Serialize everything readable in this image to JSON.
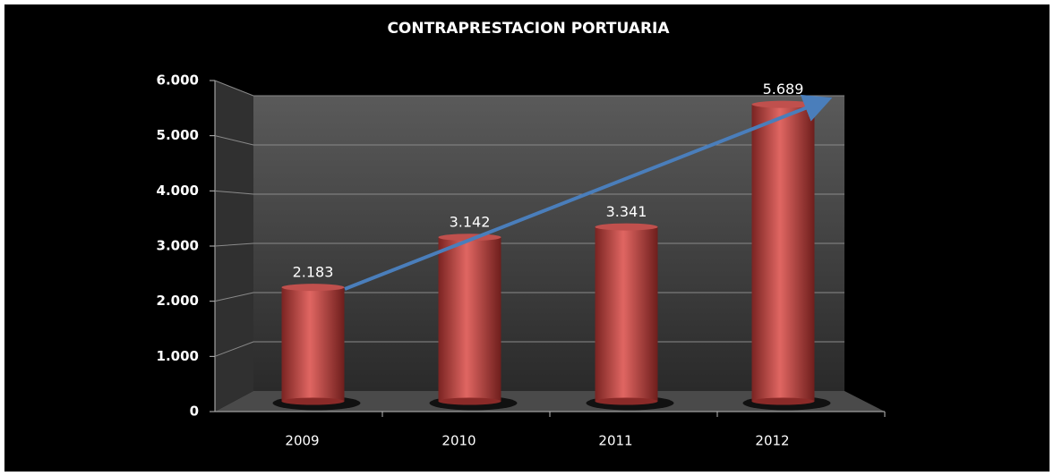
{
  "chart_data": {
    "type": "bar",
    "title": "CONTRAPRESTACION PORTUARIA",
    "categories": [
      "2009",
      "2010",
      "2011",
      "2012"
    ],
    "values": [
      2183,
      3142,
      3341,
      5689
    ],
    "value_labels": [
      "2.183",
      "3.142",
      "3.341",
      "5.689"
    ],
    "color": "#c0504d",
    "ylim": [
      0,
      6000
    ],
    "yticks": [
      0,
      {
        "value": 1000,
        "label": "1.000"
      },
      {
        "value": 2000,
        "label": "2.000"
      },
      {
        "value": 3000,
        "label": "3.000"
      },
      {
        "value": 4000,
        "label": "4.000"
      },
      {
        "value": 5000,
        "label": "5.000"
      },
      {
        "value": 6000,
        "label": "6.000"
      }
    ],
    "grid": true
  }
}
